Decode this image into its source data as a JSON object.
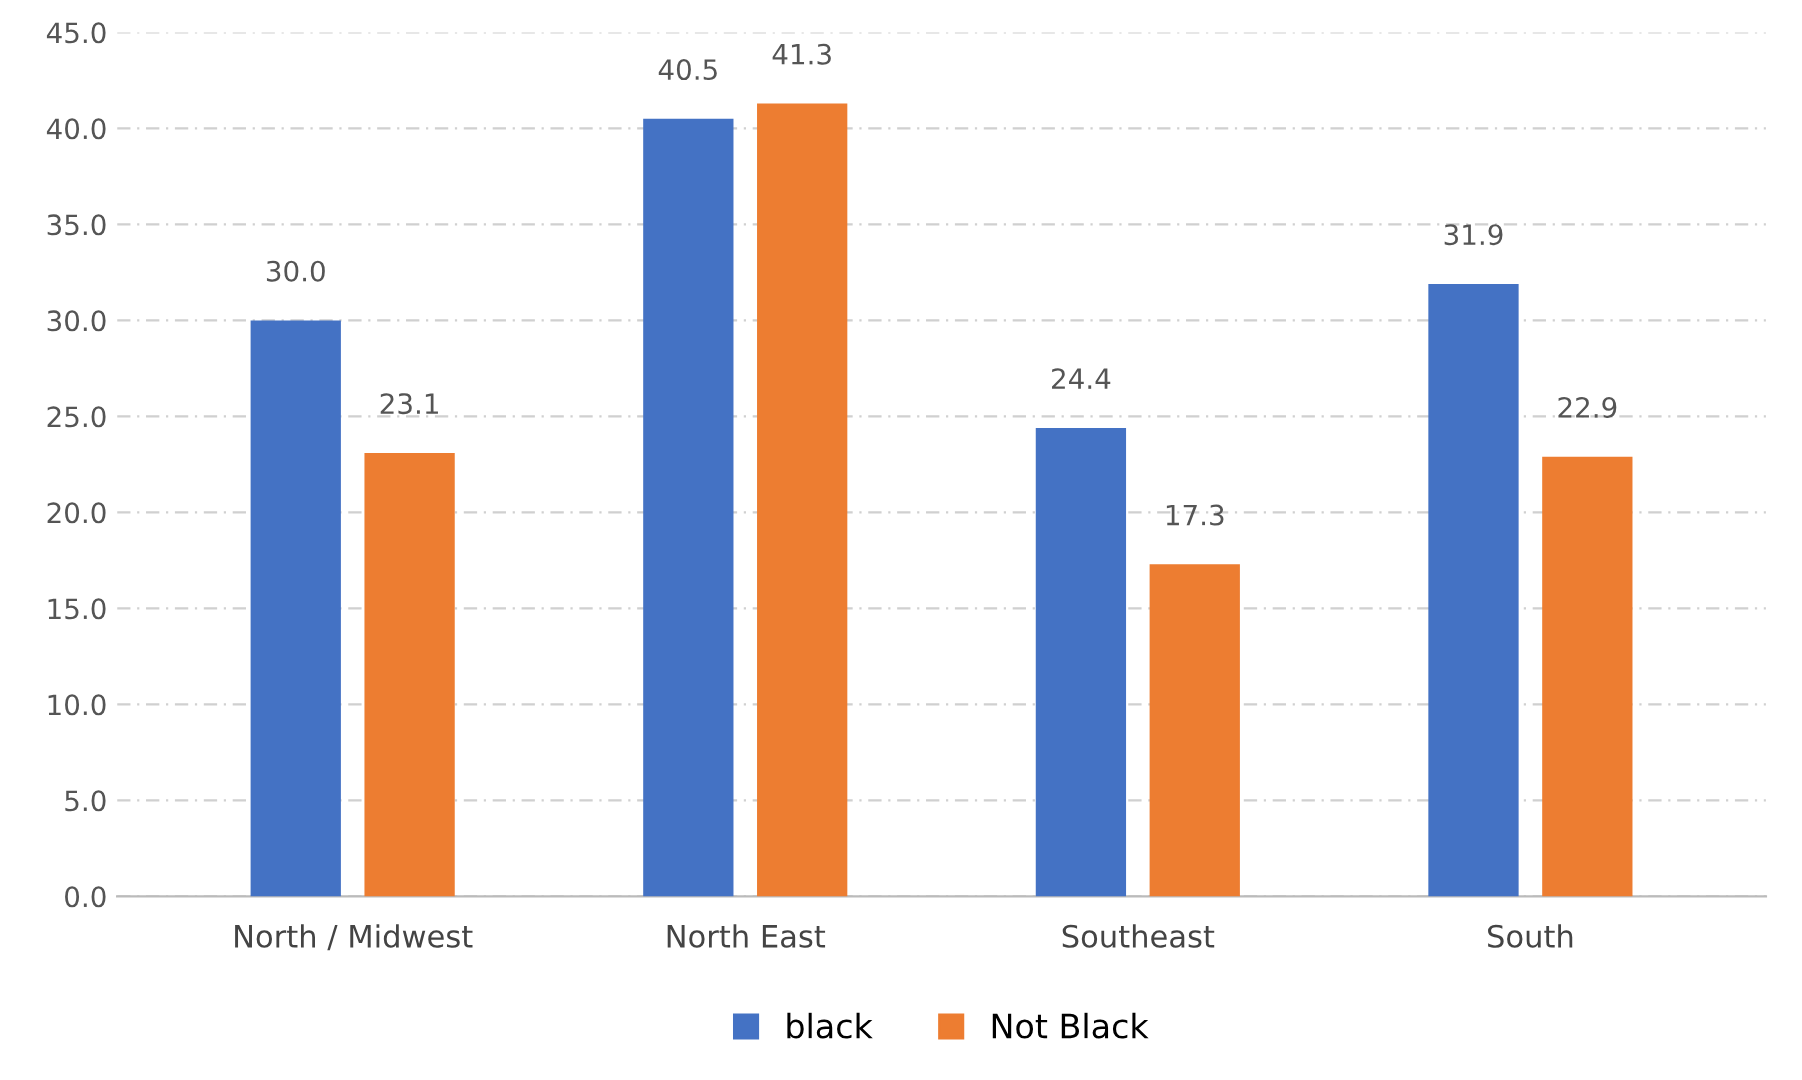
{
  "chart_data": {
    "type": "bar",
    "categories": [
      "North / Midwest",
      "North East",
      "Southeast",
      "South"
    ],
    "series": [
      {
        "name": "black",
        "color": "#4472c4",
        "values": [
          30.0,
          40.5,
          24.4,
          31.9
        ],
        "value_labels": [
          "30.0",
          "40.5",
          "24.4",
          "31.9"
        ]
      },
      {
        "name": "Not Black",
        "color": "#ed7d31",
        "values": [
          23.1,
          41.3,
          17.3,
          22.9
        ],
        "value_labels": [
          "23.1",
          "41.3",
          "17.3",
          "22.9"
        ]
      }
    ],
    "ylim": [
      0,
      45
    ],
    "yticks": [
      {
        "value": 0,
        "label": "0.0"
      },
      {
        "value": 5,
        "label": "5.0"
      },
      {
        "value": 10,
        "label": "10.0"
      },
      {
        "value": 15,
        "label": "15.0"
      },
      {
        "value": 20,
        "label": "20.0"
      },
      {
        "value": 25,
        "label": "25.0"
      },
      {
        "value": 30,
        "label": "30.0"
      },
      {
        "value": 35,
        "label": "35.0"
      },
      {
        "value": 40,
        "label": "40.0"
      },
      {
        "value": 45,
        "label": "45.0"
      }
    ],
    "grid": "y",
    "legend": "bottom"
  }
}
